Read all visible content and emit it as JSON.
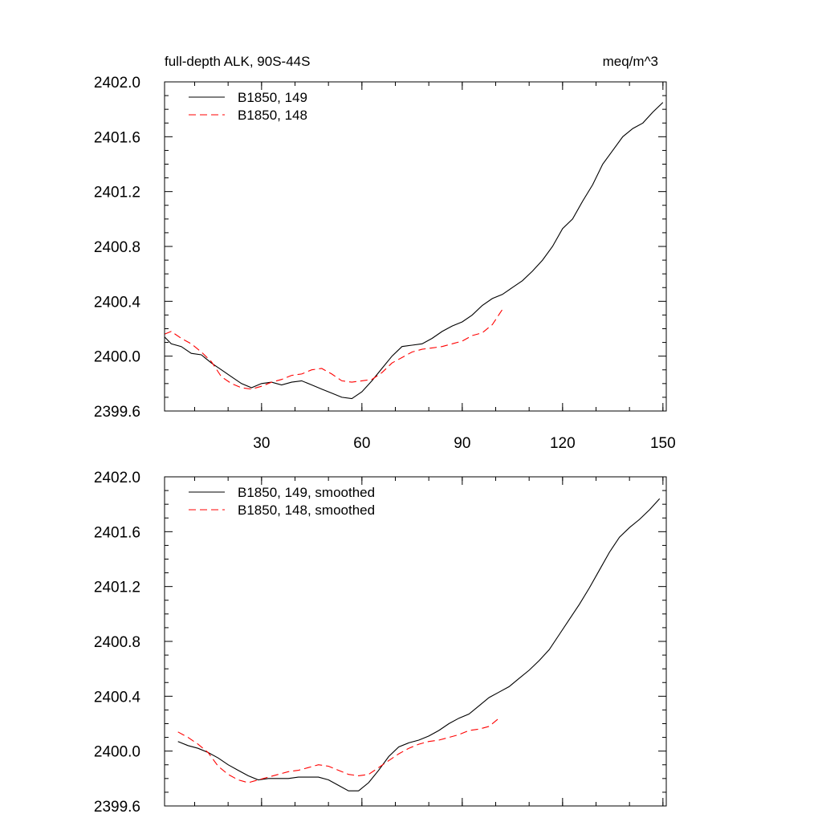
{
  "colors": {
    "series_1": "#000000",
    "series_2": "#ff0000",
    "axes": "#000000",
    "background": "#ffffff"
  },
  "chart_data": [
    {
      "type": "line",
      "title_left": "full-depth ALK, 90S-44S",
      "title_right": "meq/m^3",
      "xlabel": "",
      "ylabel": "",
      "xlim": [
        1,
        151
      ],
      "ylim": [
        2399.6,
        2402.0
      ],
      "x_ticks": [
        30,
        60,
        90,
        120,
        150
      ],
      "x_tick_labels": [
        "30",
        "60",
        "90",
        "120",
        "150"
      ],
      "y_ticks": [
        2399.6,
        2400.0,
        2400.4,
        2400.8,
        2401.2,
        2401.6,
        2402.0
      ],
      "y_tick_labels": [
        "2399.6",
        "2400.0",
        "2400.4",
        "2400.8",
        "2401.2",
        "2401.6",
        "2402.0"
      ],
      "grid": false,
      "legend_position": "top-left",
      "series": [
        {
          "name": "B1850, 149",
          "style": "solid",
          "color": "#000000",
          "x": [
            1,
            3,
            6,
            9,
            12,
            15,
            18,
            21,
            24,
            27,
            30,
            33,
            36,
            39,
            42,
            45,
            48,
            51,
            54,
            57,
            60,
            63,
            66,
            69,
            72,
            75,
            78,
            81,
            84,
            87,
            90,
            93,
            96,
            99,
            102,
            105,
            108,
            111,
            114,
            117,
            120,
            123,
            126,
            129,
            132,
            135,
            138,
            141,
            144,
            147,
            150
          ],
          "y": [
            2400.14,
            2400.09,
            2400.07,
            2400.02,
            2400.01,
            2399.95,
            2399.9,
            2399.85,
            2399.8,
            2399.77,
            2399.8,
            2399.81,
            2399.79,
            2399.81,
            2399.82,
            2399.79,
            2399.76,
            2399.73,
            2399.7,
            2399.69,
            2399.74,
            2399.82,
            2399.91,
            2400.0,
            2400.07,
            2400.08,
            2400.09,
            2400.13,
            2400.18,
            2400.22,
            2400.25,
            2400.3,
            2400.37,
            2400.42,
            2400.45,
            2400.5,
            2400.55,
            2400.62,
            2400.7,
            2400.8,
            2400.93,
            2401.0,
            2401.13,
            2401.25,
            2401.4,
            2401.5,
            2401.6,
            2401.66,
            2401.7,
            2401.78,
            2401.85
          ]
        },
        {
          "name": "B1850, 148",
          "style": "dashed",
          "color": "#ff0000",
          "x": [
            1,
            3,
            6,
            9,
            12,
            15,
            18,
            21,
            24,
            27,
            30,
            33,
            36,
            39,
            42,
            45,
            48,
            51,
            54,
            57,
            60,
            63,
            66,
            69,
            72,
            75,
            78,
            81,
            84,
            87,
            90,
            93,
            96,
            99,
            102
          ],
          "y": [
            2400.16,
            2400.18,
            2400.13,
            2400.09,
            2400.03,
            2399.96,
            2399.85,
            2399.8,
            2399.77,
            2399.76,
            2399.78,
            2399.81,
            2399.83,
            2399.86,
            2399.87,
            2399.9,
            2399.91,
            2399.87,
            2399.82,
            2399.81,
            2399.82,
            2399.83,
            2399.88,
            2399.95,
            2399.99,
            2400.03,
            2400.05,
            2400.06,
            2400.07,
            2400.09,
            2400.11,
            2400.15,
            2400.17,
            2400.23,
            2400.34
          ]
        }
      ]
    },
    {
      "type": "line",
      "title_left": "",
      "title_right": "",
      "xlabel": "",
      "ylabel": "",
      "xlim": [
        1,
        151
      ],
      "ylim": [
        2399.6,
        2402.0
      ],
      "x_ticks": [
        30,
        60,
        90,
        120,
        150
      ],
      "x_tick_labels": [],
      "y_ticks": [
        2399.6,
        2400.0,
        2400.4,
        2400.8,
        2401.2,
        2401.6,
        2402.0
      ],
      "y_tick_labels": [
        "2399.6",
        "2400.0",
        "2400.4",
        "2400.8",
        "2401.2",
        "2401.6",
        "2402.0"
      ],
      "grid": false,
      "legend_position": "top-left",
      "series": [
        {
          "name": "B1850, 149, smoothed",
          "style": "solid",
          "color": "#000000",
          "x": [
            5,
            8,
            11,
            14,
            17,
            20,
            23,
            26,
            29,
            32,
            35,
            38,
            41,
            44,
            47,
            50,
            53,
            56,
            59,
            62,
            65,
            68,
            71,
            74,
            77,
            80,
            83,
            86,
            89,
            92,
            95,
            98,
            101,
            104,
            107,
            110,
            113,
            116,
            119,
            122,
            125,
            128,
            131,
            134,
            137,
            140,
            143,
            146,
            149
          ],
          "y": [
            2400.07,
            2400.04,
            2400.02,
            2399.99,
            2399.95,
            2399.9,
            2399.86,
            2399.82,
            2399.79,
            2399.8,
            2399.8,
            2399.8,
            2399.81,
            2399.81,
            2399.81,
            2399.79,
            2399.75,
            2399.71,
            2399.71,
            2399.77,
            2399.86,
            2399.96,
            2400.03,
            2400.06,
            2400.08,
            2400.11,
            2400.15,
            2400.2,
            2400.24,
            2400.27,
            2400.33,
            2400.39,
            2400.43,
            2400.47,
            2400.53,
            2400.59,
            2400.66,
            2400.74,
            2400.85,
            2400.96,
            2401.07,
            2401.19,
            2401.32,
            2401.45,
            2401.56,
            2401.63,
            2401.69,
            2401.76,
            2401.84
          ]
        },
        {
          "name": "B1850, 148, smoothed",
          "style": "dashed",
          "color": "#ff0000",
          "x": [
            5,
            8,
            11,
            14,
            17,
            20,
            23,
            26,
            29,
            32,
            35,
            38,
            41,
            44,
            47,
            50,
            53,
            56,
            59,
            62,
            65,
            68,
            71,
            74,
            77,
            80,
            83,
            86,
            89,
            92,
            95,
            98,
            101
          ],
          "y": [
            2400.14,
            2400.1,
            2400.05,
            2399.99,
            2399.89,
            2399.83,
            2399.79,
            2399.77,
            2399.79,
            2399.81,
            2399.83,
            2399.85,
            2399.86,
            2399.88,
            2399.9,
            2399.89,
            2399.86,
            2399.83,
            2399.82,
            2399.83,
            2399.88,
            2399.93,
            2399.98,
            2400.02,
            2400.05,
            2400.07,
            2400.08,
            2400.1,
            2400.12,
            2400.15,
            2400.16,
            2400.18,
            2400.24
          ]
        }
      ]
    }
  ]
}
